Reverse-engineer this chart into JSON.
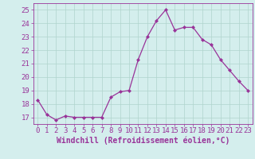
{
  "x": [
    0,
    1,
    2,
    3,
    4,
    5,
    6,
    7,
    8,
    9,
    10,
    11,
    12,
    13,
    14,
    15,
    16,
    17,
    18,
    19,
    20,
    21,
    22,
    23
  ],
  "y": [
    18.3,
    17.2,
    16.8,
    17.1,
    17.0,
    17.0,
    17.0,
    17.0,
    18.5,
    18.9,
    19.0,
    21.3,
    23.0,
    24.2,
    25.0,
    23.5,
    23.7,
    23.7,
    22.8,
    22.4,
    21.3,
    20.5,
    19.7,
    19.0
  ],
  "line_color": "#993399",
  "marker": "D",
  "marker_size": 2,
  "bg_color": "#d4eeed",
  "grid_color": "#b0d4cc",
  "xlabel": "Windchill (Refroidissement éolien,°C)",
  "xlabel_fontsize": 7,
  "tick_fontsize": 6.5,
  "ylim": [
    16.5,
    25.5
  ],
  "xlim": [
    -0.5,
    23.5
  ],
  "yticks": [
    17,
    18,
    19,
    20,
    21,
    22,
    23,
    24,
    25
  ]
}
